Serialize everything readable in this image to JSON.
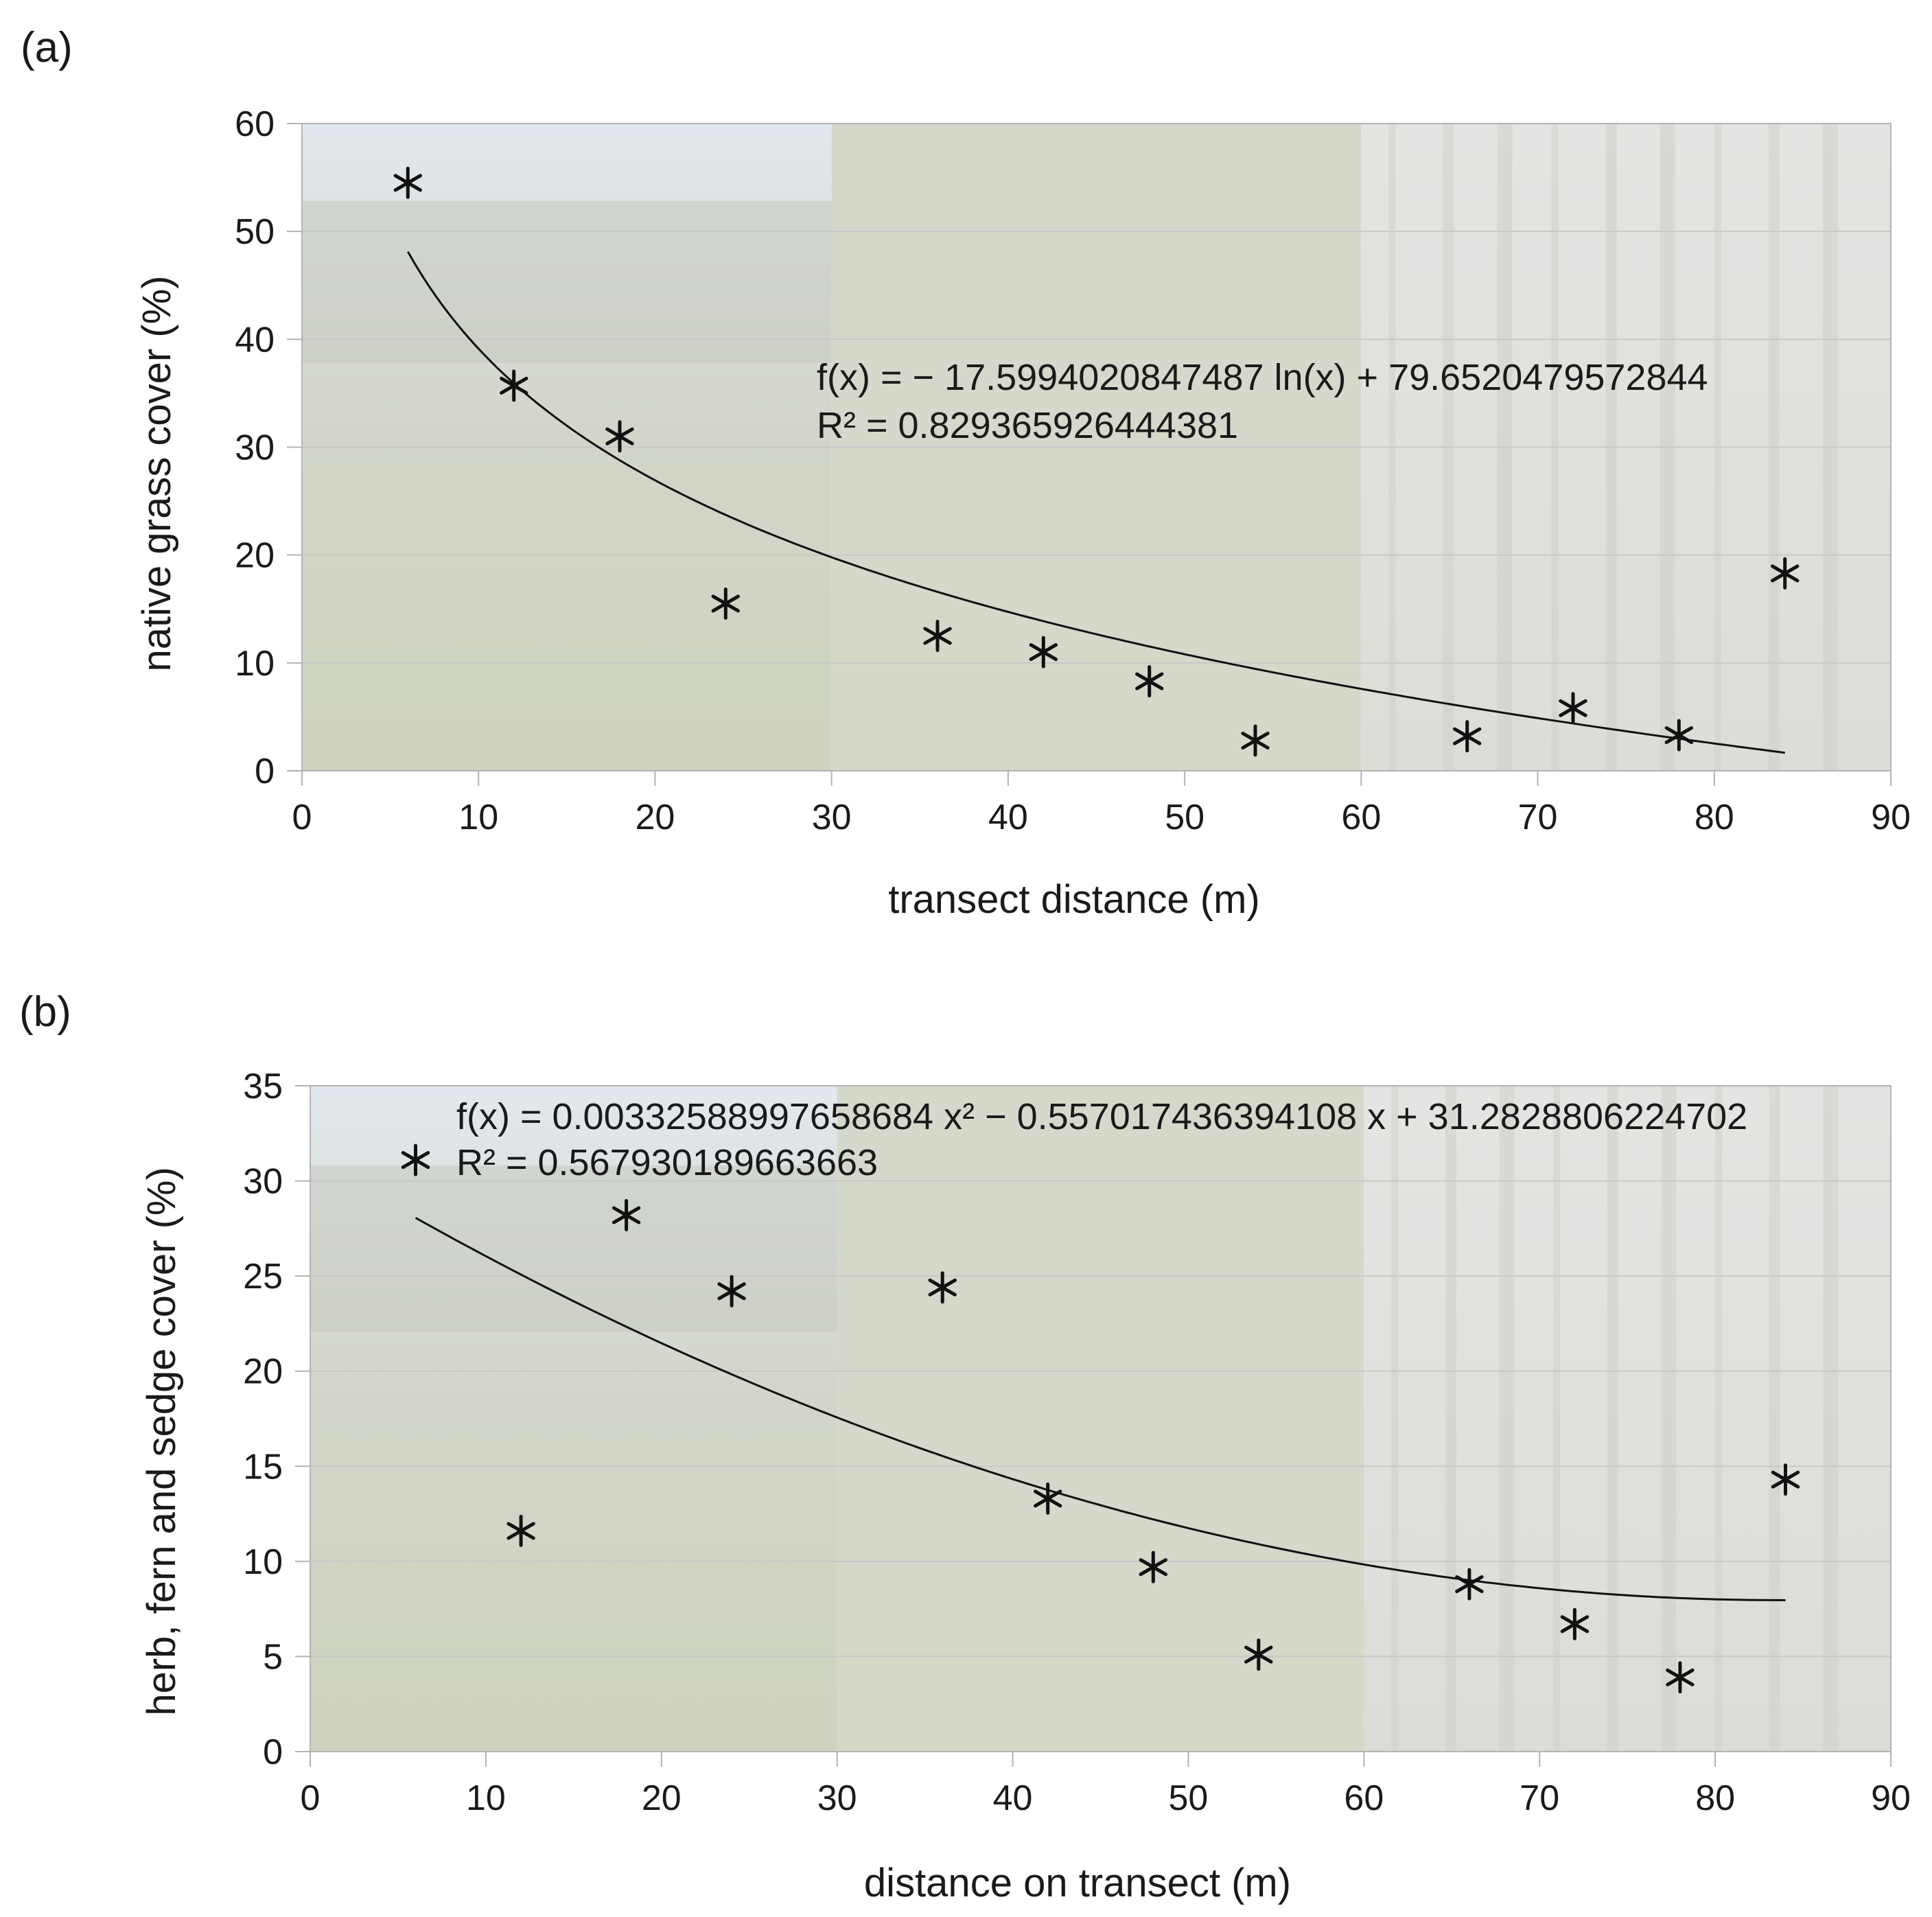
{
  "chart_data": [
    {
      "type": "scatter",
      "panel_label": "(a)",
      "xlabel": "transect distance (m)",
      "ylabel": "native grass cover (%)",
      "xlim": [
        0,
        90
      ],
      "ylim": [
        0,
        60
      ],
      "xticks": [
        "0",
        "10",
        "20",
        "30",
        "40",
        "50",
        "60",
        "70",
        "80",
        "90"
      ],
      "yticks": [
        "0",
        "10",
        "20",
        "30",
        "40",
        "50",
        "60"
      ],
      "grid": "horizontal",
      "marker": "asterisk",
      "background": "faded photograph of vegetation transect",
      "series": [
        {
          "name": "native grass cover",
          "x": [
            6,
            12,
            18,
            24,
            36,
            42,
            48,
            54,
            66,
            72,
            78,
            84
          ],
          "y": [
            54.5,
            35.7,
            31.0,
            15.5,
            12.5,
            11.0,
            8.3,
            2.8,
            3.2,
            5.8,
            3.3,
            18.3
          ]
        }
      ],
      "trendline": {
        "kind": "log",
        "a": -17.5994020847487,
        "b": 79.6520479572844,
        "xrange": [
          6,
          84
        ]
      },
      "equation": "f(x) = − 17.5994020847487 ln(x) + 79.6520479572844",
      "r2": "R² = 0.829365926444381"
    },
    {
      "type": "scatter",
      "panel_label": "(b)",
      "xlabel": "distance on transect (m)",
      "ylabel": "herb, fern and sedge cover (%)",
      "xlim": [
        0,
        90
      ],
      "ylim": [
        0,
        35
      ],
      "xticks": [
        "0",
        "10",
        "20",
        "30",
        "40",
        "50",
        "60",
        "70",
        "80",
        "90"
      ],
      "yticks": [
        "0",
        "5",
        "10",
        "15",
        "20",
        "25",
        "30",
        "35"
      ],
      "grid": "horizontal",
      "marker": "asterisk",
      "background": "faded photograph of vegetation transect",
      "series": [
        {
          "name": "herb, fern and sedge cover",
          "x": [
            6,
            12,
            18,
            24,
            36,
            42,
            48,
            54,
            66,
            72,
            78,
            84
          ],
          "y": [
            31.1,
            11.6,
            28.2,
            24.2,
            24.4,
            13.3,
            9.7,
            5.1,
            8.8,
            6.7,
            3.9,
            14.3
          ]
        }
      ],
      "trendline": {
        "kind": "poly2",
        "a": 0.00332588997658684,
        "b": -0.557017436394108,
        "c": 31.2828806224702,
        "xrange": [
          6,
          84
        ]
      },
      "equation": "f(x) = 0.00332588997658684 x² − 0.557017436394108 x + 31.2828806224702",
      "r2": "R² = 0.567930189663663"
    }
  ],
  "colors": {
    "marker": "#111111",
    "grid": "#c8c8c8",
    "photo_sky": "#e6ebf0",
    "photo_vegetation": "#c9cfbd",
    "photo_forest": "#dcdcd8"
  }
}
